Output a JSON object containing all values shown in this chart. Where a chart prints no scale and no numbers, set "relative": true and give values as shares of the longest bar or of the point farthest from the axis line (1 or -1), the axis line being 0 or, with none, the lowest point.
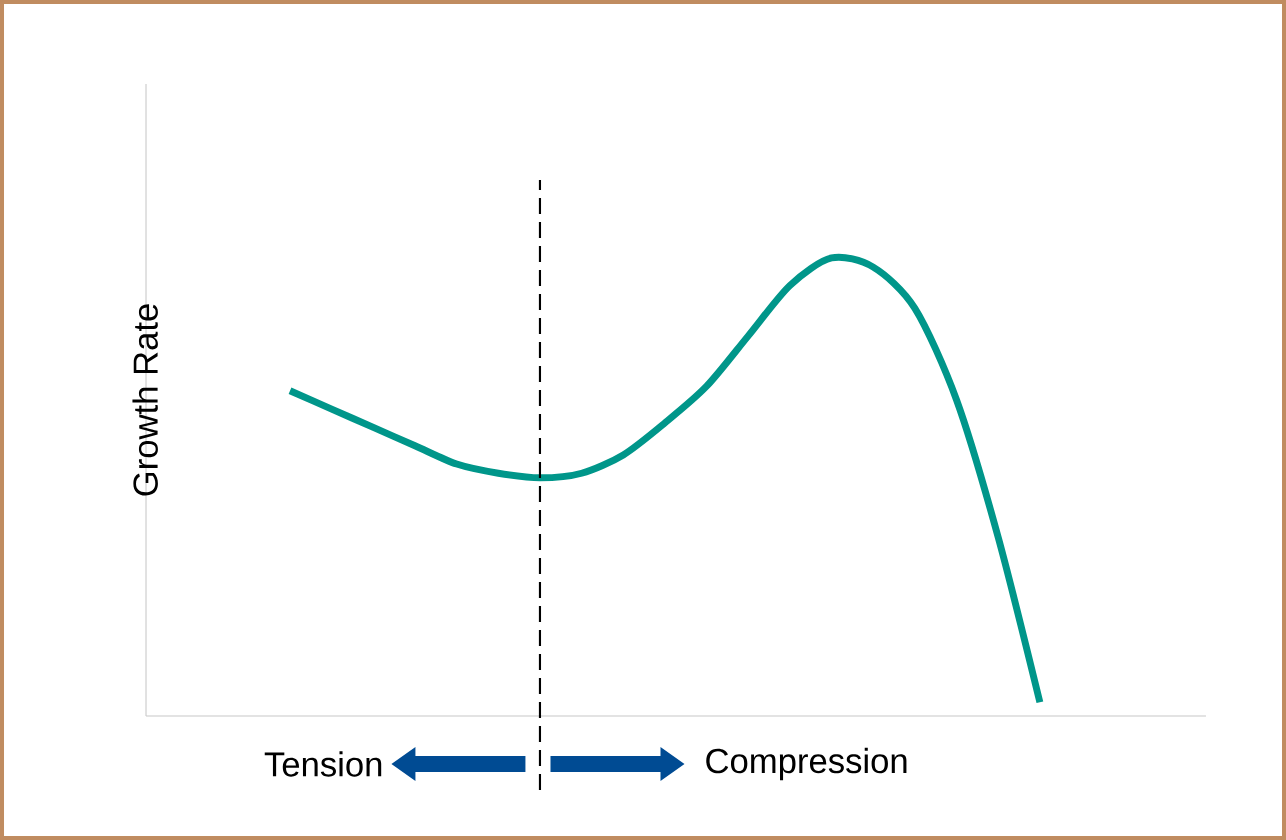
{
  "chart_data": {
    "type": "line",
    "relative": true,
    "ylabel": "Growth Rate",
    "categories": [
      null,
      null,
      null,
      null,
      null,
      null,
      null,
      null,
      null,
      null,
      null,
      null,
      null,
      null,
      null,
      null,
      null,
      null,
      null
    ],
    "series": [
      {
        "color": "#00968a",
        "values": [
          0.71,
          0.67,
          0.63,
          0.59,
          0.55,
          0.53,
          0.52,
          0.53,
          0.57,
          0.64,
          0.72,
          0.83,
          0.94,
          1.0,
          0.98,
          0.89,
          0.69,
          0.39,
          0.03
        ]
      }
    ],
    "annotations": [
      "Tension",
      "Compression"
    ]
  }
}
